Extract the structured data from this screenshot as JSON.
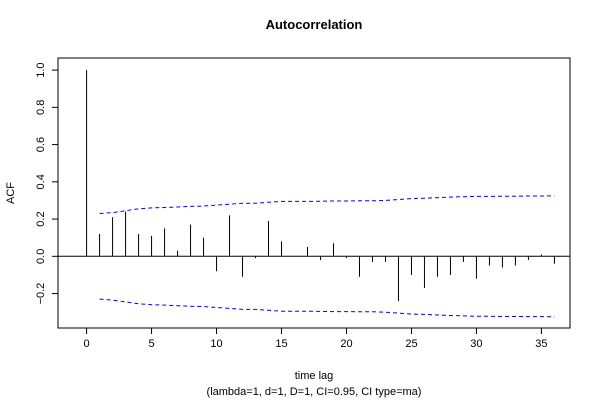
{
  "chart_data": {
    "type": "bar",
    "title": "Autocorrelation",
    "xlabel": "time lag",
    "subtitle": "(lambda=1, d=1, D=1, CI=0.95, CI type=ma)",
    "ylabel": "ACF",
    "xlim": [
      -2.2,
      37.2
    ],
    "ylim": [
      -0.385,
      1.065
    ],
    "x_ticks": [
      0,
      5,
      10,
      15,
      20,
      25,
      30,
      35
    ],
    "y_ticks": [
      -0.2,
      0.0,
      0.2,
      0.4,
      0.6,
      0.8,
      1.0
    ],
    "y_tick_labels": [
      "−0.2",
      "0.0",
      "0.2",
      "0.4",
      "0.6",
      "0.8",
      "1.0"
    ],
    "lags": [
      0,
      1,
      2,
      3,
      4,
      5,
      6,
      7,
      8,
      9,
      10,
      11,
      12,
      13,
      14,
      15,
      16,
      17,
      18,
      19,
      20,
      21,
      22,
      23,
      24,
      25,
      26,
      27,
      28,
      29,
      30,
      31,
      32,
      33,
      34,
      35,
      36
    ],
    "values": [
      1.0,
      0.12,
      0.21,
      0.24,
      0.12,
      0.11,
      0.15,
      0.03,
      0.17,
      0.1,
      -0.08,
      0.22,
      -0.11,
      -0.01,
      0.19,
      0.08,
      0.0,
      0.05,
      -0.02,
      0.07,
      -0.01,
      -0.11,
      -0.03,
      -0.03,
      -0.24,
      -0.1,
      -0.17,
      -0.11,
      -0.1,
      -0.03,
      -0.12,
      -0.05,
      -0.06,
      -0.05,
      -0.02,
      0.01,
      -0.04
    ],
    "ci_upper": [
      null,
      0.23,
      0.235,
      0.245,
      0.255,
      0.26,
      0.262,
      0.265,
      0.268,
      0.27,
      0.275,
      0.28,
      0.285,
      0.285,
      0.29,
      0.295,
      0.295,
      0.295,
      0.296,
      0.297,
      0.297,
      0.298,
      0.298,
      0.3,
      0.305,
      0.31,
      0.312,
      0.315,
      0.318,
      0.32,
      0.322,
      0.322,
      0.323,
      0.323,
      0.324,
      0.324,
      0.325
    ],
    "colors": {
      "bars": "#000000",
      "ci_line": "#0000ff",
      "zero_line": "#000000",
      "frame": "#000000"
    },
    "grid": false
  }
}
